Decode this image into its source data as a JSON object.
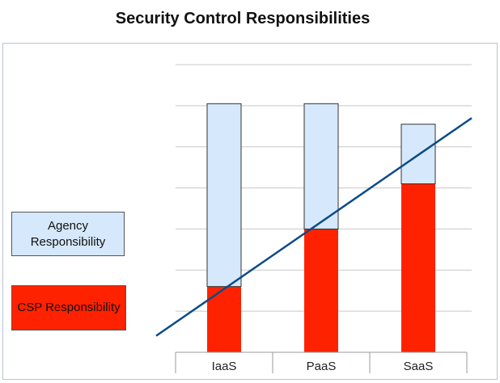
{
  "title": "Security Control Responsibilities",
  "chart_data": {
    "type": "bar",
    "stacked": true,
    "categories": [
      "IaaS",
      "PaaS",
      "SaaS"
    ],
    "series": [
      {
        "name": "CSP Responsibility",
        "values": [
          1.6,
          3.0,
          4.1
        ],
        "color": "#ff2200"
      },
      {
        "name": "Agency Responsibility",
        "values": [
          4.45,
          3.05,
          1.45
        ],
        "color": "#d6e8fb"
      }
    ],
    "ylim": [
      0,
      7
    ],
    "grid": true,
    "legend": "left",
    "trend_line": {
      "color": "#0c4b87",
      "from": {
        "category_pos": -0.7,
        "value": 0.4
      },
      "to": {
        "category_pos": 2.55,
        "value": 5.7
      }
    }
  }
}
